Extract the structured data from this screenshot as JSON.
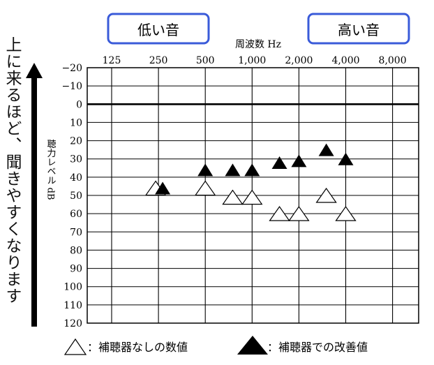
{
  "side_note": "上に来るほど、聞きやすくなります",
  "low_tone_label": "低い音",
  "high_tone_label": "高い音",
  "accent_color": "#3a5bd9",
  "legend": {
    "open_triangle_label": "：補聴器なしの数値",
    "filled_triangle_label": "：補聴器での改善値"
  },
  "chart_data": {
    "type": "scatter",
    "xlabel": "周波数 Hz",
    "ylabel": "聴力レベル dB",
    "x_ticks": [
      "125",
      "250",
      "500",
      "1,000",
      "2,000",
      "4,000",
      "8,000"
    ],
    "y_ticks": [
      "−20",
      "−10",
      "0",
      "10",
      "20",
      "30",
      "40",
      "50",
      "60",
      "70",
      "80",
      "90",
      "100",
      "110",
      "120"
    ],
    "ylim": [
      -20,
      120
    ],
    "y_inverted": true,
    "x_scale": "log2",
    "xlim": [
      125,
      8000
    ],
    "grid": true,
    "series": [
      {
        "name": "補聴器なしの数値",
        "marker": "open-triangle",
        "points": [
          {
            "x": 250,
            "y": 46
          },
          {
            "x": 500,
            "y": 46
          },
          {
            "x": 750,
            "y": 51
          },
          {
            "x": 1000,
            "y": 51
          },
          {
            "x": 1500,
            "y": 60
          },
          {
            "x": 2000,
            "y": 60
          },
          {
            "x": 3000,
            "y": 50
          },
          {
            "x": 4000,
            "y": 60
          }
        ]
      },
      {
        "name": "補聴器での改善値",
        "marker": "filled-triangle",
        "points": [
          {
            "x": 250,
            "y": 46
          },
          {
            "x": 500,
            "y": 36
          },
          {
            "x": 750,
            "y": 36
          },
          {
            "x": 1000,
            "y": 36
          },
          {
            "x": 1500,
            "y": 32
          },
          {
            "x": 2000,
            "y": 31
          },
          {
            "x": 3000,
            "y": 25
          },
          {
            "x": 4000,
            "y": 30
          }
        ]
      }
    ]
  }
}
